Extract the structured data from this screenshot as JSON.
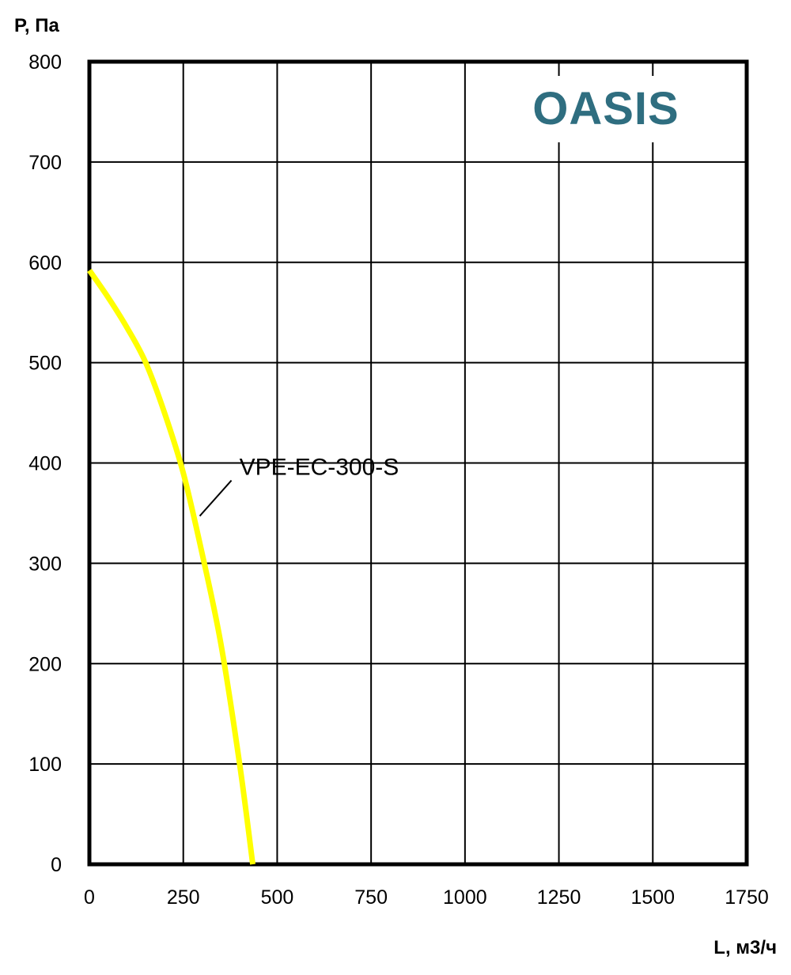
{
  "chart_data": {
    "type": "line",
    "title": "",
    "xlabel": "L, м3/ч",
    "ylabel": "P, Па",
    "xlim": [
      0,
      1750
    ],
    "ylim": [
      0,
      800
    ],
    "x_ticks": [
      0,
      250,
      500,
      750,
      1000,
      1250,
      1500,
      1750
    ],
    "y_ticks": [
      0,
      100,
      200,
      300,
      400,
      500,
      600,
      700,
      800
    ],
    "x_tick_labels": [
      "0",
      "250",
      "500",
      "750",
      "1000",
      "1250",
      "1500",
      "1750"
    ],
    "y_tick_labels": [
      "0",
      "100",
      "200",
      "300",
      "400",
      "500",
      "600",
      "700",
      "800"
    ],
    "grid": true,
    "series": [
      {
        "name": "VPE-EC-300-S",
        "color": "#ffff00",
        "x": [
          0,
          50,
          100,
          150,
          200,
          250,
          300,
          350,
          400,
          435
        ],
        "y": [
          592,
          565,
          535,
          500,
          450,
          390,
          310,
          220,
          100,
          0
        ]
      }
    ],
    "annotations": [
      {
        "text": "VPE-EC-300-S",
        "x": 395,
        "y": 385
      }
    ]
  },
  "logo": {
    "text": "OASIS",
    "color": "#2f6e80"
  }
}
